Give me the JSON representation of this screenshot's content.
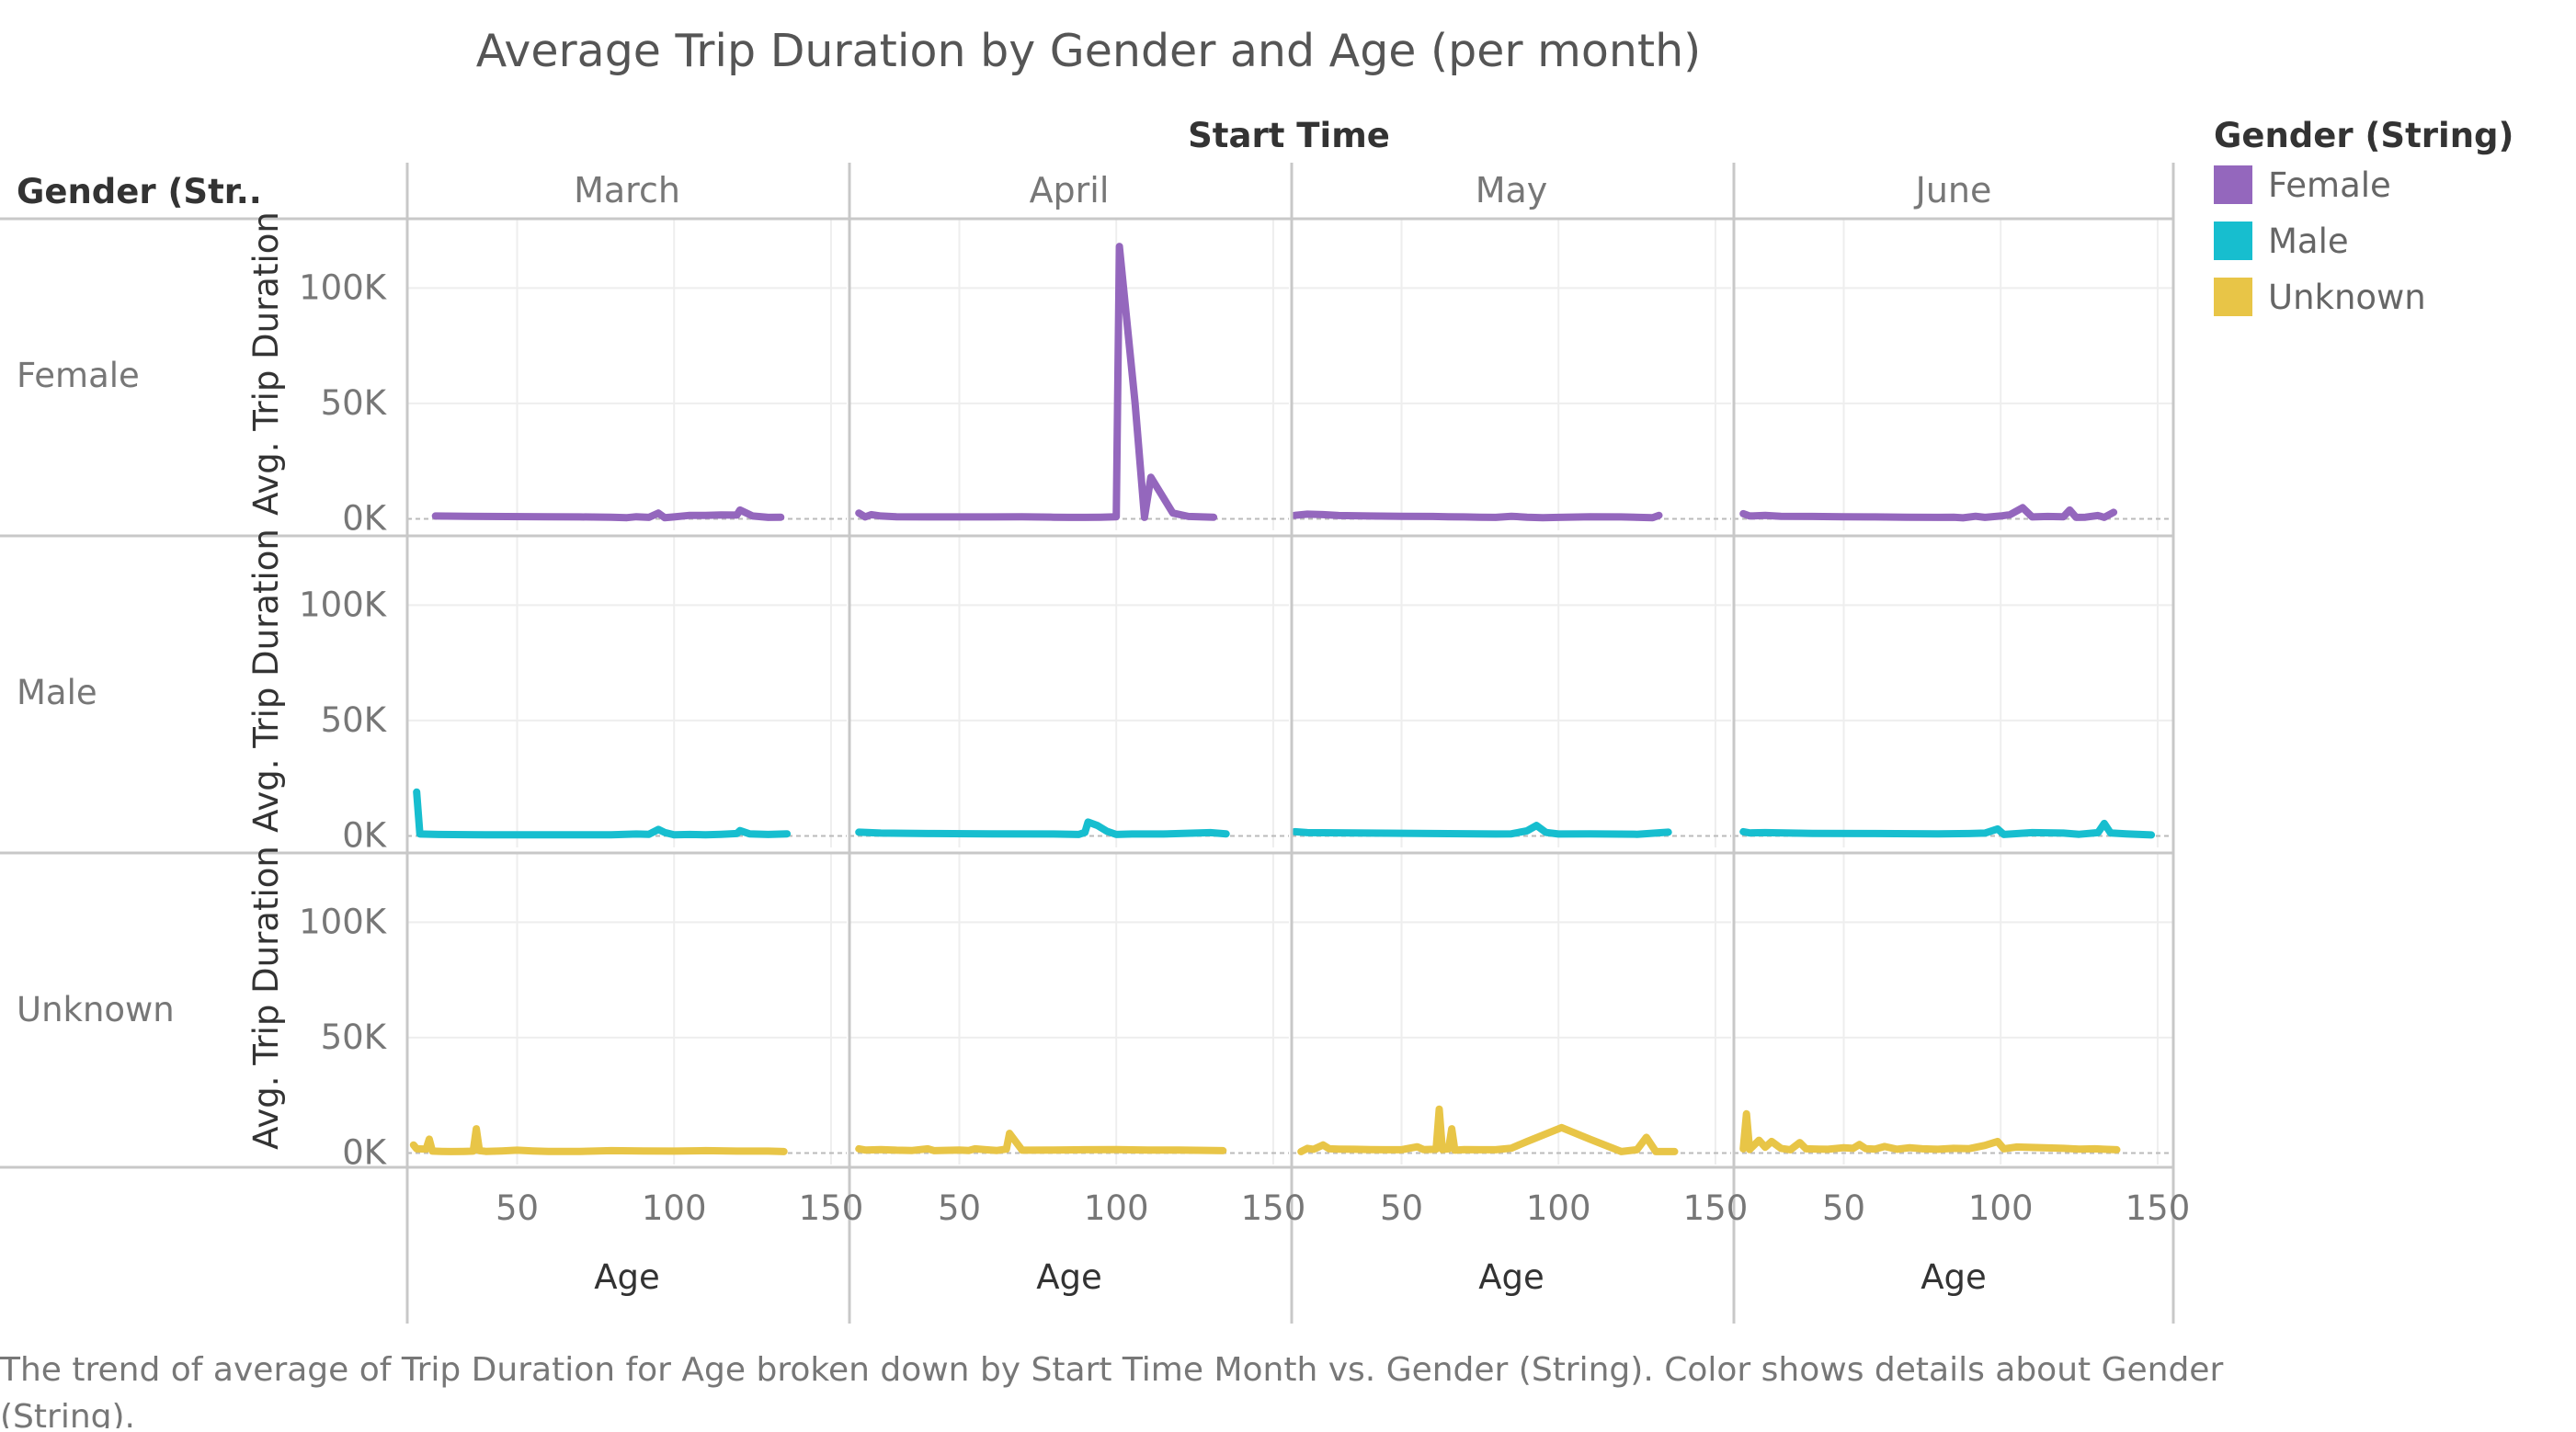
{
  "title": "Average Trip Duration by Gender and Age (per month)",
  "column_header": "Start Time",
  "row_header": "Gender (Str..",
  "legend": {
    "title": "Gender (String)",
    "items": [
      {
        "label": "Female",
        "color": "#9467bd"
      },
      {
        "label": "Male",
        "color": "#17becf"
      },
      {
        "label": "Unknown",
        "color": "#e8c547"
      }
    ]
  },
  "caption_lines": [
    "The trend of average of Trip Duration for Age broken down by Start Time Month vs. Gender (String).  Color shows details about Gender",
    "(String)."
  ],
  "chart_data": {
    "type": "line",
    "title": "Average Trip Duration by Gender and Age (per month)",
    "xlabel": "Age",
    "ylabel": "Avg. Trip Duration",
    "columns": [
      "March",
      "April",
      "May",
      "June"
    ],
    "rows": [
      "Female",
      "Male",
      "Unknown"
    ],
    "xlim": [
      15,
      155
    ],
    "ylim": [
      -5000,
      130000
    ],
    "xticks": [
      50,
      100,
      150
    ],
    "yticks": [
      0,
      50000,
      100000
    ],
    "ytick_labels": [
      "0K",
      "50K",
      "100K"
    ],
    "legend_position": "top-right",
    "grid": true,
    "panels": [
      {
        "row": "Female",
        "column": "March",
        "points": [
          [
            24,
            1200
          ],
          [
            40,
            1000
          ],
          [
            60,
            900
          ],
          [
            70,
            800
          ],
          [
            80,
            700
          ],
          [
            85,
            500
          ],
          [
            88,
            900
          ],
          [
            92,
            600
          ],
          [
            95,
            2500
          ],
          [
            97,
            500
          ],
          [
            100,
            800
          ],
          [
            105,
            1500
          ],
          [
            110,
            1500
          ],
          [
            115,
            1700
          ],
          [
            120,
            1600
          ],
          [
            121,
            3800
          ],
          [
            125,
            1200
          ],
          [
            130,
            600
          ],
          [
            134,
            700
          ]
        ]
      },
      {
        "row": "Female",
        "column": "April",
        "points": [
          [
            18,
            2500
          ],
          [
            20,
            800
          ],
          [
            22,
            1800
          ],
          [
            25,
            1200
          ],
          [
            30,
            900
          ],
          [
            40,
            800
          ],
          [
            60,
            800
          ],
          [
            70,
            900
          ],
          [
            80,
            700
          ],
          [
            85,
            600
          ],
          [
            90,
            600
          ],
          [
            95,
            700
          ],
          [
            100,
            900
          ],
          [
            101,
            118000
          ],
          [
            106,
            50000
          ],
          [
            109,
            600
          ],
          [
            111,
            18000
          ],
          [
            118,
            2500
          ],
          [
            123,
            1000
          ],
          [
            131,
            700
          ]
        ]
      },
      {
        "row": "Female",
        "column": "May",
        "points": [
          [
            16,
            1500
          ],
          [
            20,
            2000
          ],
          [
            25,
            1800
          ],
          [
            30,
            1400
          ],
          [
            40,
            1200
          ],
          [
            50,
            1100
          ],
          [
            60,
            1000
          ],
          [
            65,
            900
          ],
          [
            70,
            800
          ],
          [
            75,
            700
          ],
          [
            80,
            600
          ],
          [
            85,
            1100
          ],
          [
            90,
            700
          ],
          [
            95,
            500
          ],
          [
            100,
            600
          ],
          [
            110,
            900
          ],
          [
            120,
            800
          ],
          [
            130,
            500
          ],
          [
            132,
            1500
          ]
        ]
      },
      {
        "row": "Female",
        "column": "June",
        "points": [
          [
            18,
            2200
          ],
          [
            20,
            1200
          ],
          [
            25,
            1500
          ],
          [
            30,
            1100
          ],
          [
            40,
            1000
          ],
          [
            50,
            900
          ],
          [
            60,
            800
          ],
          [
            70,
            700
          ],
          [
            80,
            600
          ],
          [
            85,
            700
          ],
          [
            88,
            400
          ],
          [
            92,
            1100
          ],
          [
            95,
            600
          ],
          [
            100,
            1200
          ],
          [
            103,
            1800
          ],
          [
            107,
            4800
          ],
          [
            110,
            800
          ],
          [
            115,
            1000
          ],
          [
            120,
            900
          ],
          [
            122,
            3800
          ],
          [
            124,
            600
          ],
          [
            127,
            700
          ],
          [
            131,
            1400
          ],
          [
            133,
            600
          ],
          [
            136,
            2800
          ]
        ]
      },
      {
        "row": "Male",
        "column": "March",
        "points": [
          [
            18,
            19000
          ],
          [
            19,
            800
          ],
          [
            25,
            600
          ],
          [
            40,
            500
          ],
          [
            60,
            500
          ],
          [
            80,
            500
          ],
          [
            88,
            800
          ],
          [
            92,
            700
          ],
          [
            95,
            2800
          ],
          [
            97,
            1500
          ],
          [
            100,
            500
          ],
          [
            105,
            600
          ],
          [
            110,
            500
          ],
          [
            115,
            700
          ],
          [
            120,
            1000
          ],
          [
            121,
            2300
          ],
          [
            124,
            900
          ],
          [
            130,
            600
          ],
          [
            136,
            900
          ]
        ]
      },
      {
        "row": "Male",
        "column": "April",
        "points": [
          [
            18,
            1600
          ],
          [
            25,
            1200
          ],
          [
            40,
            1000
          ],
          [
            60,
            900
          ],
          [
            80,
            800
          ],
          [
            88,
            600
          ],
          [
            90,
            1500
          ],
          [
            91,
            6000
          ],
          [
            94,
            4500
          ],
          [
            97,
            2000
          ],
          [
            100,
            600
          ],
          [
            105,
            800
          ],
          [
            115,
            800
          ],
          [
            130,
            1400
          ],
          [
            135,
            900
          ]
        ]
      },
      {
        "row": "Male",
        "column": "May",
        "points": [
          [
            16,
            1800
          ],
          [
            20,
            1400
          ],
          [
            40,
            1200
          ],
          [
            60,
            1000
          ],
          [
            80,
            800
          ],
          [
            85,
            900
          ],
          [
            90,
            2200
          ],
          [
            93,
            4500
          ],
          [
            96,
            1500
          ],
          [
            100,
            800
          ],
          [
            110,
            900
          ],
          [
            125,
            700
          ],
          [
            135,
            1600
          ]
        ]
      },
      {
        "row": "Male",
        "column": "June",
        "points": [
          [
            18,
            1800
          ],
          [
            20,
            1300
          ],
          [
            25,
            1400
          ],
          [
            40,
            1100
          ],
          [
            60,
            1000
          ],
          [
            80,
            900
          ],
          [
            90,
            1000
          ],
          [
            95,
            1200
          ],
          [
            99,
            3000
          ],
          [
            101,
            600
          ],
          [
            110,
            1400
          ],
          [
            120,
            1200
          ],
          [
            125,
            700
          ],
          [
            131,
            1400
          ],
          [
            133,
            5400
          ],
          [
            135,
            1300
          ],
          [
            140,
            900
          ],
          [
            148,
            400
          ]
        ]
      },
      {
        "row": "Unknown",
        "column": "March",
        "points": [
          [
            17,
            3500
          ],
          [
            18,
            1800
          ],
          [
            21,
            1700
          ],
          [
            22,
            6000
          ],
          [
            23,
            800
          ],
          [
            26,
            700
          ],
          [
            29,
            600
          ],
          [
            33,
            700
          ],
          [
            36,
            800
          ],
          [
            37,
            10500
          ],
          [
            38,
            1000
          ],
          [
            40,
            700
          ],
          [
            45,
            900
          ],
          [
            50,
            1200
          ],
          [
            55,
            900
          ],
          [
            60,
            700
          ],
          [
            70,
            700
          ],
          [
            80,
            1000
          ],
          [
            90,
            900
          ],
          [
            100,
            800
          ],
          [
            110,
            1000
          ],
          [
            120,
            800
          ],
          [
            130,
            800
          ],
          [
            135,
            600
          ]
        ]
      },
      {
        "row": "Unknown",
        "column": "April",
        "points": [
          [
            18,
            1800
          ],
          [
            20,
            1300
          ],
          [
            25,
            1500
          ],
          [
            30,
            1200
          ],
          [
            35,
            1100
          ],
          [
            40,
            1800
          ],
          [
            42,
            1000
          ],
          [
            50,
            1300
          ],
          [
            53,
            1100
          ],
          [
            55,
            1800
          ],
          [
            58,
            1500
          ],
          [
            62,
            1100
          ],
          [
            65,
            1700
          ],
          [
            66,
            8500
          ],
          [
            70,
            1200
          ],
          [
            80,
            1300
          ],
          [
            90,
            1400
          ],
          [
            100,
            1500
          ],
          [
            110,
            1300
          ],
          [
            120,
            1300
          ],
          [
            134,
            1000
          ]
        ]
      },
      {
        "row": "Unknown",
        "column": "May",
        "points": [
          [
            18,
            600
          ],
          [
            20,
            2000
          ],
          [
            22,
            1600
          ],
          [
            25,
            3500
          ],
          [
            27,
            1800
          ],
          [
            30,
            1700
          ],
          [
            35,
            1600
          ],
          [
            40,
            1500
          ],
          [
            45,
            1400
          ],
          [
            50,
            1400
          ],
          [
            55,
            2700
          ],
          [
            57,
            1500
          ],
          [
            61,
            1600
          ],
          [
            62,
            19000
          ],
          [
            63,
            1500
          ],
          [
            65,
            1800
          ],
          [
            66,
            10500
          ],
          [
            67,
            1200
          ],
          [
            70,
            1500
          ],
          [
            75,
            1400
          ],
          [
            80,
            1400
          ],
          [
            85,
            2100
          ],
          [
            90,
            5000
          ],
          [
            101,
            11000
          ],
          [
            110,
            6000
          ],
          [
            120,
            600
          ],
          [
            125,
            1400
          ],
          [
            128,
            6800
          ],
          [
            131,
            600
          ],
          [
            137,
            600
          ]
        ]
      },
      {
        "row": "Unknown",
        "column": "June",
        "points": [
          [
            18,
            1800
          ],
          [
            19,
            17000
          ],
          [
            20,
            1500
          ],
          [
            23,
            5500
          ],
          [
            25,
            2500
          ],
          [
            27,
            5000
          ],
          [
            30,
            2000
          ],
          [
            33,
            1400
          ],
          [
            36,
            4500
          ],
          [
            38,
            1800
          ],
          [
            42,
            1700
          ],
          [
            45,
            1600
          ],
          [
            50,
            2300
          ],
          [
            53,
            2000
          ],
          [
            55,
            3700
          ],
          [
            57,
            1900
          ],
          [
            60,
            1700
          ],
          [
            63,
            2800
          ],
          [
            67,
            1600
          ],
          [
            71,
            2300
          ],
          [
            75,
            1800
          ],
          [
            80,
            1600
          ],
          [
            85,
            2000
          ],
          [
            90,
            1900
          ],
          [
            95,
            3300
          ],
          [
            99,
            5000
          ],
          [
            101,
            1800
          ],
          [
            105,
            2600
          ],
          [
            115,
            2200
          ],
          [
            120,
            2000
          ],
          [
            125,
            1700
          ],
          [
            130,
            1800
          ],
          [
            137,
            1400
          ]
        ]
      }
    ]
  }
}
